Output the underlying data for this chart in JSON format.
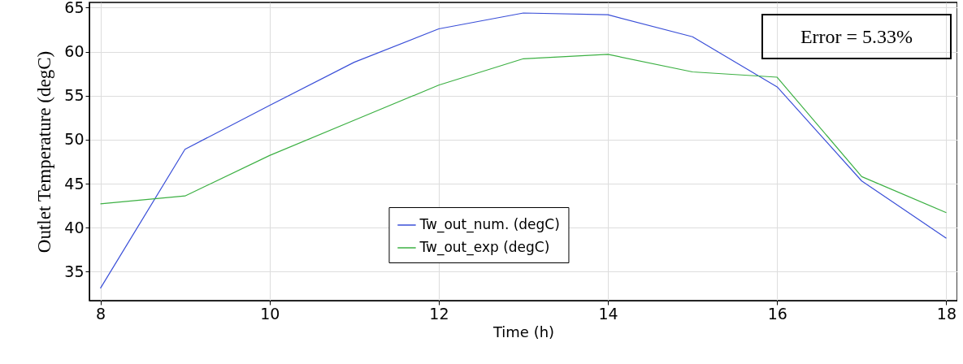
{
  "chart_data": {
    "type": "line",
    "xlabel": "Time (h)",
    "ylabel": "Outlet Temperature (degC)",
    "x": [
      8,
      9,
      10,
      11,
      12,
      13,
      14,
      15,
      16,
      17,
      18
    ],
    "series": [
      {
        "name": "Tw_out_num. (degC)",
        "color": "#3a4fd8",
        "values": [
          33.1,
          48.9,
          53.9,
          58.8,
          62.6,
          64.4,
          64.2,
          61.7,
          56.0,
          45.3,
          38.8
        ]
      },
      {
        "name": "Tw_out_exp (degC)",
        "color": "#3cb043",
        "values": [
          42.7,
          43.6,
          48.2,
          52.2,
          56.2,
          59.2,
          59.7,
          57.7,
          57.1,
          45.8,
          41.7
        ]
      }
    ],
    "xlim": [
      7.87,
      18.13
    ],
    "xticks": [
      8,
      10,
      12,
      14,
      16,
      18
    ],
    "ylim": [
      31.7,
      65.6
    ],
    "yticks": [
      35,
      40,
      45,
      50,
      55,
      60,
      65
    ],
    "grid": true,
    "legend": "bottom",
    "marker": "none",
    "line_style": "solid",
    "annotations": [
      "Error = 5.33%"
    ]
  }
}
